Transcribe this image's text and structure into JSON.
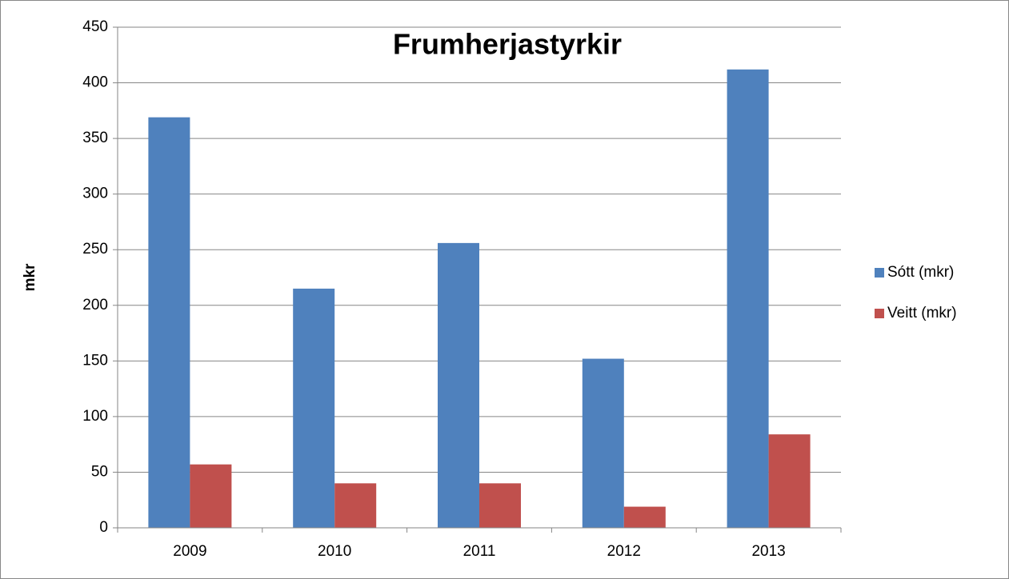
{
  "chart_data": {
    "type": "bar",
    "title": "Frumherjastyrkir",
    "ylabel": "mkr",
    "categories": [
      "2009",
      "2010",
      "2011",
      "2012",
      "2013"
    ],
    "series": [
      {
        "name": "Sótt (mkr)",
        "color": "#4f81bd",
        "values": [
          369,
          215,
          256,
          152,
          412
        ]
      },
      {
        "name": "Veitt (mkr)",
        "color": "#c0504d",
        "values": [
          57,
          40,
          40,
          19,
          84
        ]
      }
    ],
    "ylim": [
      0,
      450
    ],
    "yticks": [
      0,
      50,
      100,
      150,
      200,
      250,
      300,
      350,
      400,
      450
    ],
    "grid": true,
    "legend": "right"
  }
}
